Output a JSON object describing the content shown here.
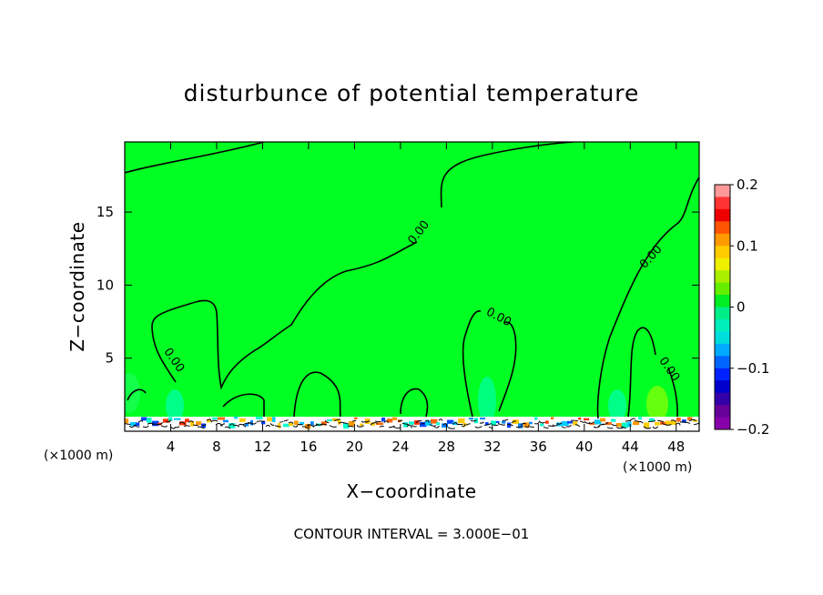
{
  "chart_data": {
    "type": "heatmap",
    "title": "disturbunce of potential temperature",
    "xlabel": "X−coordinate",
    "ylabel": "Z−coordinate",
    "x_unit": "(×1000 m)",
    "x_unit_right": "(×1000 m)",
    "xlim": [
      0,
      50
    ],
    "ylim": [
      0,
      19.8
    ],
    "x_ticks": [
      4,
      8,
      12,
      16,
      20,
      24,
      28,
      32,
      36,
      40,
      44,
      48
    ],
    "y_ticks": [
      5,
      10,
      15
    ],
    "colorbar": {
      "range": [
        -0.2,
        0.2
      ],
      "ticks": [
        "0.2",
        "0.1",
        "0",
        "−0.1",
        "−0.2"
      ],
      "colors": [
        "#ff9999",
        "#ff3333",
        "#ee0000",
        "#ff5500",
        "#ff9900",
        "#ffcc00",
        "#eeee00",
        "#aaee00",
        "#66ee00",
        "#00ee22",
        "#00ee88",
        "#00eebb",
        "#00dddd",
        "#00aaff",
        "#0066ff",
        "#0022ff",
        "#0000cc",
        "#3300aa",
        "#660099",
        "#8800aa"
      ]
    },
    "background_value": 0,
    "contour_interval": "CONTOUR INTERVAL = 3.000E−01",
    "contour_labels": [
      "0.00",
      "0.00",
      "0.00",
      "0.00",
      "0.00"
    ],
    "grid": false,
    "legend": "right (colorbar)"
  },
  "colors": {
    "field_green": "#00ff22",
    "contour_line": "#000000",
    "warm_anomaly": "#ff6600",
    "cool_anomaly": "#0088ff"
  }
}
